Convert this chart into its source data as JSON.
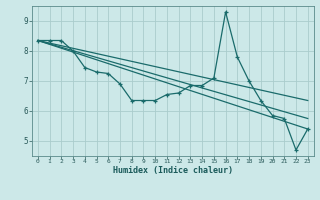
{
  "title": "",
  "xlabel": "Humidex (Indice chaleur)",
  "ylabel": "",
  "background_color": "#cce8e8",
  "line_color": "#1a6b6b",
  "grid_color": "#aacccc",
  "xlim": [
    -0.5,
    23.5
  ],
  "ylim": [
    4.5,
    9.5
  ],
  "yticks": [
    5,
    6,
    7,
    8,
    9
  ],
  "xticks": [
    0,
    1,
    2,
    3,
    4,
    5,
    6,
    7,
    8,
    9,
    10,
    11,
    12,
    13,
    14,
    15,
    16,
    17,
    18,
    19,
    20,
    21,
    22,
    23
  ],
  "line1_x": [
    0,
    1,
    2,
    3,
    4,
    5,
    6,
    7,
    8,
    9,
    10,
    11,
    12,
    13,
    14,
    15,
    16,
    17,
    18,
    19,
    20,
    21,
    22,
    23
  ],
  "line1_y": [
    8.35,
    8.35,
    8.35,
    8.0,
    7.45,
    7.3,
    7.25,
    6.9,
    6.35,
    6.35,
    6.35,
    6.55,
    6.6,
    6.85,
    6.85,
    7.1,
    9.3,
    7.8,
    7.0,
    6.35,
    5.85,
    5.75,
    4.7,
    5.4
  ],
  "line2_x": [
    0,
    23
  ],
  "line2_y": [
    8.35,
    5.4
  ],
  "line3_x": [
    0,
    23
  ],
  "line3_y": [
    8.35,
    5.75
  ],
  "line4_x": [
    0,
    23
  ],
  "line4_y": [
    8.35,
    6.35
  ]
}
